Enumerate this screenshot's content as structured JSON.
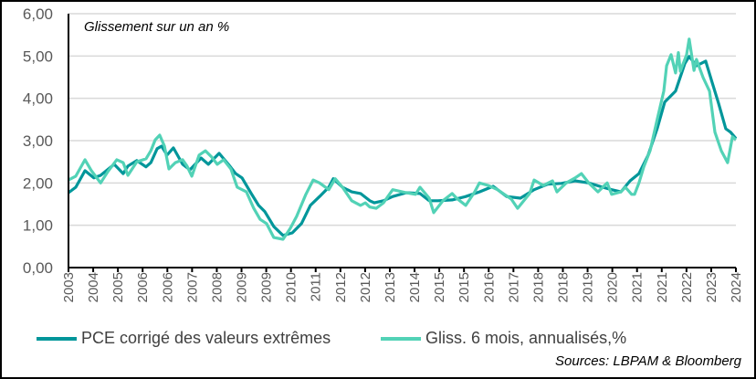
{
  "chart_data": {
    "type": "line",
    "title": "Glissement sur un an %",
    "xlabel": "",
    "ylabel": "",
    "ylim": [
      0,
      6
    ],
    "xlim": [
      2003,
      2024
    ],
    "yticks": [
      "0,00",
      "1,00",
      "2,00",
      "3,00",
      "4,00",
      "5,00",
      "6,00"
    ],
    "xtick_labels": [
      "2003",
      "2004",
      "2005",
      "2006",
      "2006",
      "2007",
      "2008",
      "2009",
      "2009",
      "2010",
      "2011",
      "2012",
      "2012",
      "2013",
      "2014",
      "2015",
      "2015",
      "2016",
      "2017",
      "2018",
      "2018",
      "2019",
      "2020",
      "2021",
      "2021",
      "2022",
      "2023",
      "2024"
    ],
    "grid": "horizontal",
    "legend_position": "bottom",
    "series": [
      {
        "name": "PCE corrigé des valeurs extrêmes",
        "color": "#00969a",
        "points": [
          [
            2003.0,
            1.77
          ],
          [
            2003.23,
            1.9
          ],
          [
            2003.52,
            2.29
          ],
          [
            2003.8,
            2.12
          ],
          [
            2004.01,
            2.18
          ],
          [
            2004.44,
            2.44
          ],
          [
            2004.72,
            2.22
          ],
          [
            2004.87,
            2.4
          ],
          [
            2005.15,
            2.53
          ],
          [
            2005.44,
            2.38
          ],
          [
            2005.59,
            2.48
          ],
          [
            2005.79,
            2.81
          ],
          [
            2005.93,
            2.87
          ],
          [
            2006.1,
            2.66
          ],
          [
            2006.3,
            2.83
          ],
          [
            2006.59,
            2.44
          ],
          [
            2006.82,
            2.31
          ],
          [
            2007.17,
            2.59
          ],
          [
            2007.4,
            2.44
          ],
          [
            2007.74,
            2.7
          ],
          [
            2008.03,
            2.44
          ],
          [
            2008.26,
            2.22
          ],
          [
            2008.46,
            2.12
          ],
          [
            2008.75,
            1.75
          ],
          [
            2008.98,
            1.47
          ],
          [
            2009.18,
            1.32
          ],
          [
            2009.46,
            0.97
          ],
          [
            2009.75,
            0.76
          ],
          [
            2010.04,
            0.82
          ],
          [
            2010.33,
            1.04
          ],
          [
            2010.61,
            1.47
          ],
          [
            2010.9,
            1.68
          ],
          [
            2011.19,
            1.9
          ],
          [
            2011.33,
            2.1
          ],
          [
            2011.62,
            1.9
          ],
          [
            2011.91,
            1.79
          ],
          [
            2012.19,
            1.75
          ],
          [
            2012.48,
            1.58
          ],
          [
            2012.62,
            1.53
          ],
          [
            2012.91,
            1.58
          ],
          [
            2013.2,
            1.68
          ],
          [
            2013.63,
            1.77
          ],
          [
            2014.06,
            1.75
          ],
          [
            2014.35,
            1.58
          ],
          [
            2014.63,
            1.58
          ],
          [
            2015.07,
            1.6
          ],
          [
            2015.5,
            1.68
          ],
          [
            2015.93,
            1.79
          ],
          [
            2016.36,
            1.92
          ],
          [
            2016.79,
            1.68
          ],
          [
            2017.22,
            1.64
          ],
          [
            2017.65,
            1.84
          ],
          [
            2018.08,
            1.97
          ],
          [
            2018.51,
            1.99
          ],
          [
            2018.94,
            2.05
          ],
          [
            2019.37,
            2.0
          ],
          [
            2019.81,
            1.9
          ],
          [
            2020.09,
            1.84
          ],
          [
            2020.38,
            1.79
          ],
          [
            2020.67,
            2.05
          ],
          [
            2020.95,
            2.22
          ],
          [
            2021.24,
            2.66
          ],
          [
            2021.53,
            3.3
          ],
          [
            2021.76,
            3.91
          ],
          [
            2022.1,
            4.17
          ],
          [
            2022.39,
            4.82
          ],
          [
            2022.53,
            4.99
          ],
          [
            2022.76,
            4.77
          ],
          [
            2023.05,
            4.88
          ],
          [
            2023.25,
            4.38
          ],
          [
            2023.45,
            3.89
          ],
          [
            2023.68,
            3.28
          ],
          [
            2023.83,
            3.2
          ],
          [
            2024.0,
            3.05
          ]
        ]
      },
      {
        "name": "Gliss. 6 mois, annualisés,%",
        "color": "#52d2b6",
        "points": [
          [
            2003.0,
            2.07
          ],
          [
            2003.23,
            2.16
          ],
          [
            2003.52,
            2.55
          ],
          [
            2003.72,
            2.29
          ],
          [
            2004.01,
            2.0
          ],
          [
            2004.24,
            2.27
          ],
          [
            2004.52,
            2.55
          ],
          [
            2004.72,
            2.48
          ],
          [
            2004.87,
            2.18
          ],
          [
            2005.15,
            2.5
          ],
          [
            2005.44,
            2.57
          ],
          [
            2005.59,
            2.76
          ],
          [
            2005.73,
            3.02
          ],
          [
            2005.87,
            3.13
          ],
          [
            2006.02,
            2.87
          ],
          [
            2006.16,
            2.33
          ],
          [
            2006.36,
            2.48
          ],
          [
            2006.59,
            2.55
          ],
          [
            2006.73,
            2.4
          ],
          [
            2006.88,
            2.16
          ],
          [
            2007.11,
            2.66
          ],
          [
            2007.31,
            2.76
          ],
          [
            2007.51,
            2.61
          ],
          [
            2007.68,
            2.44
          ],
          [
            2007.88,
            2.55
          ],
          [
            2008.11,
            2.33
          ],
          [
            2008.31,
            1.9
          ],
          [
            2008.6,
            1.79
          ],
          [
            2008.83,
            1.4
          ],
          [
            2009.03,
            1.14
          ],
          [
            2009.23,
            1.04
          ],
          [
            2009.46,
            0.71
          ],
          [
            2009.75,
            0.67
          ],
          [
            2009.98,
            0.93
          ],
          [
            2010.18,
            1.21
          ],
          [
            2010.47,
            1.73
          ],
          [
            2010.7,
            2.07
          ],
          [
            2010.9,
            2.0
          ],
          [
            2011.19,
            1.84
          ],
          [
            2011.39,
            2.1
          ],
          [
            2011.62,
            1.9
          ],
          [
            2011.91,
            1.58
          ],
          [
            2012.19,
            1.47
          ],
          [
            2012.34,
            1.53
          ],
          [
            2012.48,
            1.43
          ],
          [
            2012.68,
            1.4
          ],
          [
            2012.91,
            1.53
          ],
          [
            2013.2,
            1.84
          ],
          [
            2013.63,
            1.77
          ],
          [
            2013.92,
            1.73
          ],
          [
            2014.06,
            1.9
          ],
          [
            2014.35,
            1.64
          ],
          [
            2014.49,
            1.3
          ],
          [
            2014.78,
            1.58
          ],
          [
            2015.07,
            1.75
          ],
          [
            2015.21,
            1.64
          ],
          [
            2015.5,
            1.47
          ],
          [
            2015.78,
            1.79
          ],
          [
            2015.93,
            2.0
          ],
          [
            2016.21,
            1.94
          ],
          [
            2016.5,
            1.84
          ],
          [
            2016.93,
            1.62
          ],
          [
            2017.13,
            1.4
          ],
          [
            2017.51,
            1.75
          ],
          [
            2017.65,
            2.07
          ],
          [
            2017.94,
            1.94
          ],
          [
            2018.23,
            2.05
          ],
          [
            2018.37,
            1.79
          ],
          [
            2018.66,
            2.0
          ],
          [
            2018.94,
            2.12
          ],
          [
            2019.14,
            2.22
          ],
          [
            2019.37,
            2.0
          ],
          [
            2019.66,
            1.79
          ],
          [
            2019.95,
            2.0
          ],
          [
            2020.09,
            1.73
          ],
          [
            2020.38,
            1.79
          ],
          [
            2020.52,
            1.9
          ],
          [
            2020.72,
            1.73
          ],
          [
            2020.81,
            1.73
          ],
          [
            2020.95,
            2.0
          ],
          [
            2021.1,
            2.38
          ],
          [
            2021.3,
            2.76
          ],
          [
            2021.53,
            3.52
          ],
          [
            2021.73,
            4.17
          ],
          [
            2021.82,
            4.77
          ],
          [
            2021.96,
            5.03
          ],
          [
            2022.1,
            4.6
          ],
          [
            2022.19,
            5.08
          ],
          [
            2022.25,
            4.64
          ],
          [
            2022.45,
            5.03
          ],
          [
            2022.53,
            5.4
          ],
          [
            2022.68,
            4.66
          ],
          [
            2022.76,
            4.92
          ],
          [
            2022.97,
            4.49
          ],
          [
            2023.17,
            4.17
          ],
          [
            2023.34,
            3.2
          ],
          [
            2023.54,
            2.76
          ],
          [
            2023.74,
            2.48
          ],
          [
            2023.89,
            3.09
          ],
          [
            2024.0,
            3.02
          ]
        ]
      }
    ]
  },
  "sources": "Sources: LBPAM & Bloomberg"
}
